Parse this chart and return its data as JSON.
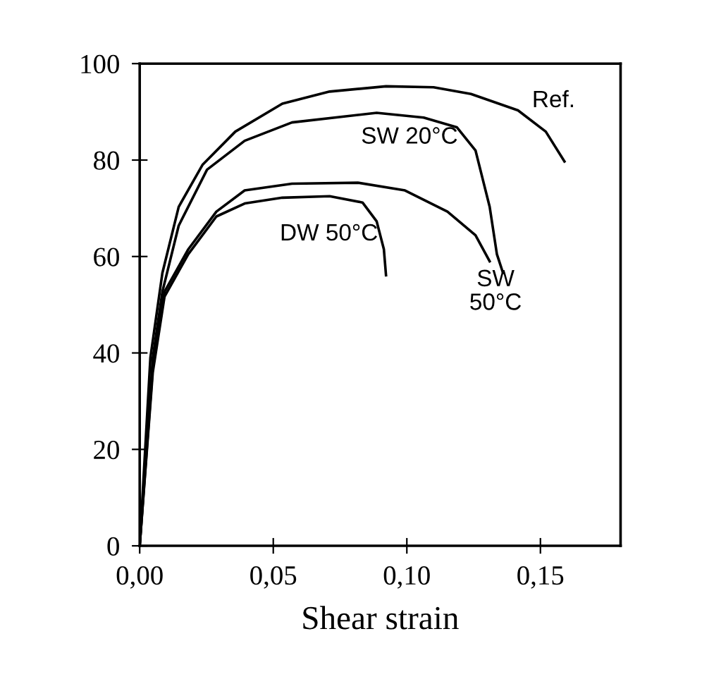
{
  "chart_data": {
    "type": "line",
    "xlabel": "Shear strain",
    "xlim": [
      0,
      0.18
    ],
    "ylim": [
      0,
      100
    ],
    "xticks": [
      {
        "value": 0,
        "label": "0,00"
      },
      {
        "value": 0.05,
        "label": "0,05"
      },
      {
        "value": 0.1,
        "label": "0,10"
      },
      {
        "value": 0.15,
        "label": "0,15"
      }
    ],
    "yticks": [
      0,
      20,
      40,
      60,
      80,
      100
    ],
    "grid": false,
    "legend": false,
    "marker": "none",
    "line_style": "solid",
    "series": [
      {
        "name": "Ref.",
        "color": "#000000",
        "x": [
          0,
          0.004,
          0.0085,
          0.0146,
          0.0235,
          0.0358,
          0.0534,
          0.0711,
          0.0922,
          0.11,
          0.124,
          0.1416,
          0.152,
          0.159
        ],
        "values": [
          0,
          39,
          56.6,
          70.3,
          79,
          85.9,
          91.7,
          94.2,
          95.3,
          95.1,
          93.7,
          90.3,
          85.9,
          79.7
        ]
      },
      {
        "name": "SW 20°C",
        "color": "#000000",
        "x": [
          0,
          0.0049,
          0.0085,
          0.0146,
          0.0252,
          0.0393,
          0.057,
          0.0887,
          0.1063,
          0.1187,
          0.1257,
          0.131,
          0.1337,
          0.136
        ],
        "values": [
          0,
          39,
          52.7,
          66.4,
          78,
          84,
          87.8,
          89.8,
          88.8,
          86.8,
          82,
          70.3,
          60.5,
          56.6
        ]
      },
      {
        "name": "SW\n50°C",
        "color": "#000000",
        "x": [
          0,
          0.0049,
          0.0093,
          0.0182,
          0.0287,
          0.0393,
          0.057,
          0.0817,
          0.0993,
          0.1152,
          0.1257,
          0.131
        ],
        "values": [
          0,
          37,
          52.7,
          61.5,
          69.3,
          73.7,
          75.1,
          75.3,
          73.7,
          69.3,
          64.4,
          59
        ]
      },
      {
        "name": "DW 50°C",
        "color": "#000000",
        "x": [
          0,
          0.0049,
          0.0093,
          0.0182,
          0.0287,
          0.0393,
          0.0534,
          0.0711,
          0.0834,
          0.0887,
          0.0914,
          0.0922
        ],
        "values": [
          0,
          36,
          51.7,
          60.5,
          68.3,
          71,
          72.2,
          72.5,
          71.2,
          67.3,
          61.5,
          56.1
        ]
      }
    ]
  }
}
